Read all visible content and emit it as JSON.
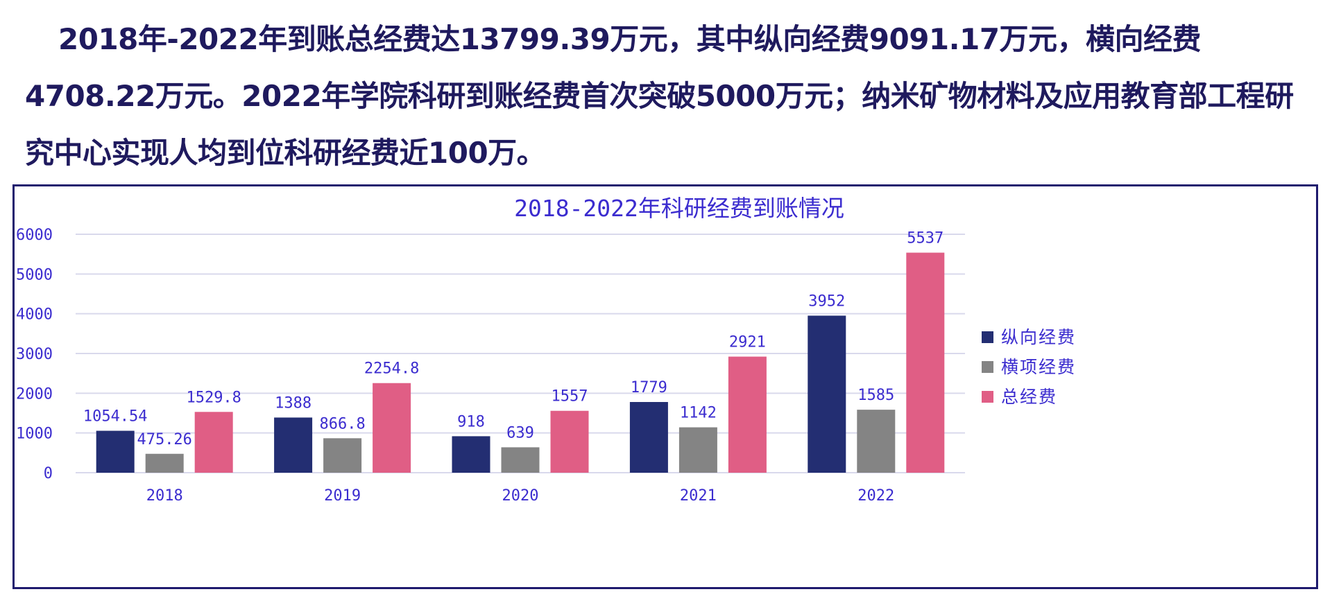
{
  "intro": {
    "text": "2018年-2022年到账总经费达13799.39万元，其中纵向经费9091.17万元，横向经费4708.22万元。2022年学院科研到账经费首次突破5000万元；纳米矿物材料及应用教育部工程研究中心实现人均到位科研经费近100万。"
  },
  "colors": {
    "intro_text": "#1f1a5e",
    "frame_border": "#1e1a6e",
    "chart_text": "#3b2ccf",
    "gridline": "#d9d9ec"
  },
  "chart_data": {
    "type": "bar",
    "title": "2018-2022年科研经费到账情况",
    "xlabel": "",
    "ylabel": "",
    "categories": [
      "2018",
      "2019",
      "2020",
      "2021",
      "2022"
    ],
    "series": [
      {
        "name": "纵向经费",
        "color": "#232e72",
        "values": [
          1054.54,
          1388,
          918,
          1779,
          3952
        ],
        "labels": [
          "1054.54",
          "1388",
          "918",
          "1779",
          "3952"
        ]
      },
      {
        "name": "横项经费",
        "color": "#848484",
        "values": [
          475.26,
          866.8,
          639,
          1142,
          1585
        ],
        "labels": [
          "475.26",
          "866.8",
          "639",
          "1142",
          "1585"
        ]
      },
      {
        "name": "总经费",
        "color": "#e05e85",
        "values": [
          1529.8,
          2254.8,
          1557,
          2921,
          5537
        ],
        "labels": [
          "1529.8",
          "2254.8",
          "1557",
          "2921",
          "5537"
        ]
      }
    ],
    "yticks": [
      "0",
      "1000",
      "2000",
      "3000",
      "4000",
      "5000",
      "6000"
    ],
    "ylim": [
      0,
      6000
    ],
    "grid": true,
    "legend": "right"
  }
}
